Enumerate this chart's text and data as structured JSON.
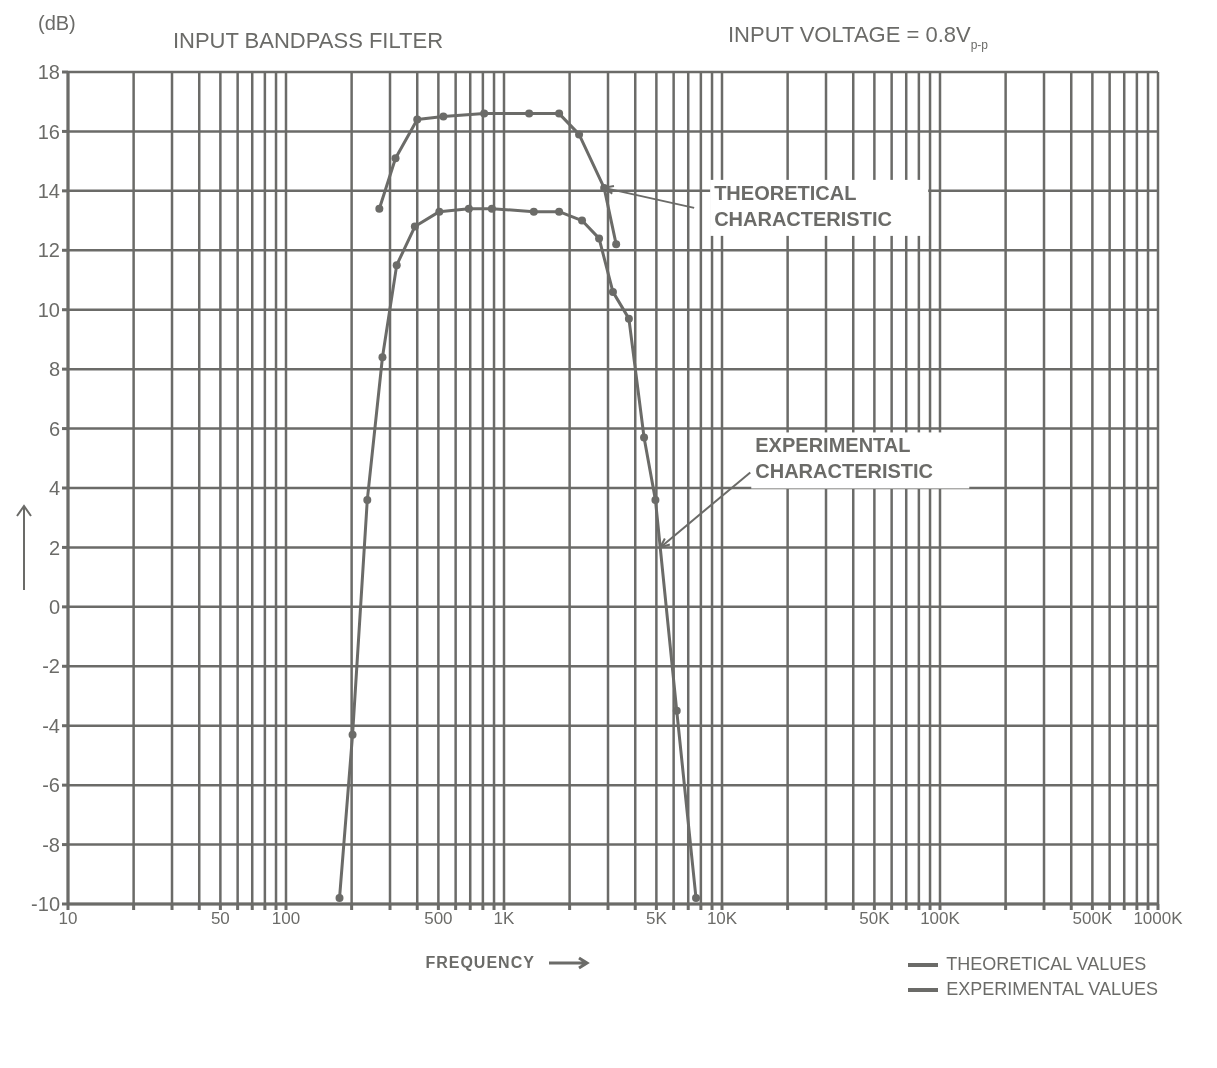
{
  "chart_data": {
    "type": "line",
    "title": "INPUT BANDPASS FILTER",
    "subtitle": "INPUT VOLTAGE = 0.8V$_{p-p}$",
    "ylabel": "(dB)",
    "xlabel": "FREQUENCY",
    "log": "x",
    "grid": true,
    "marker": "circle",
    "line_style": "solid",
    "legend": "bottom right",
    "xlim": [
      10,
      1000000
    ],
    "xticks": [
      {
        "value": 10,
        "label": "10"
      },
      {
        "value": 20,
        "label": null
      },
      {
        "value": 30,
        "label": null
      },
      {
        "value": 40,
        "label": null
      },
      {
        "value": 50,
        "label": "50"
      },
      {
        "value": 60,
        "label": null
      },
      {
        "value": 70,
        "label": null
      },
      {
        "value": 80,
        "label": null
      },
      {
        "value": 90,
        "label": null
      },
      {
        "value": 100,
        "label": "100"
      },
      {
        "value": 200,
        "label": null
      },
      {
        "value": 300,
        "label": null
      },
      {
        "value": 400,
        "label": null
      },
      {
        "value": 500,
        "label": "500"
      },
      {
        "value": 600,
        "label": null
      },
      {
        "value": 700,
        "label": null
      },
      {
        "value": 800,
        "label": null
      },
      {
        "value": 900,
        "label": null
      },
      {
        "value": 1000,
        "label": "1K"
      },
      {
        "value": 2000,
        "label": null
      },
      {
        "value": 3000,
        "label": null
      },
      {
        "value": 4000,
        "label": null
      },
      {
        "value": 5000,
        "label": "5K"
      },
      {
        "value": 6000,
        "label": null
      },
      {
        "value": 7000,
        "label": null
      },
      {
        "value": 8000,
        "label": null
      },
      {
        "value": 9000,
        "label": null
      },
      {
        "value": 10000,
        "label": "10K"
      },
      {
        "value": 20000,
        "label": null
      },
      {
        "value": 30000,
        "label": null
      },
      {
        "value": 40000,
        "label": null
      },
      {
        "value": 50000,
        "label": "50K"
      },
      {
        "value": 60000,
        "label": null
      },
      {
        "value": 70000,
        "label": null
      },
      {
        "value": 80000,
        "label": null
      },
      {
        "value": 90000,
        "label": null
      },
      {
        "value": 100000,
        "label": "100K"
      },
      {
        "value": 200000,
        "label": null
      },
      {
        "value": 300000,
        "label": null
      },
      {
        "value": 400000,
        "label": null
      },
      {
        "value": 500000,
        "label": "500K"
      },
      {
        "value": 600000,
        "label": null
      },
      {
        "value": 700000,
        "label": null
      },
      {
        "value": 800000,
        "label": null
      },
      {
        "value": 900000,
        "label": null
      },
      {
        "value": 1000000,
        "label": "1000K"
      }
    ],
    "ylim": [
      -10,
      18
    ],
    "yticks": [
      -10,
      -8,
      -6,
      -4,
      -2,
      0,
      2,
      4,
      6,
      8,
      10,
      12,
      14,
      16,
      18
    ],
    "series": [
      {
        "name": "THEORETICAL VALUES",
        "color": "#6b6b68",
        "x": [
          268,
          318,
          400,
          527,
          811,
          1304,
          1790,
          2210,
          2880,
          3270
        ],
        "values": [
          13.4,
          15.1,
          16.4,
          16.5,
          16.6,
          16.6,
          16.6,
          15.9,
          14.1,
          12.2
        ]
      },
      {
        "name": "EXPERIMENTAL VALUES",
        "color": "#6b6b68",
        "x": [
          176,
          202,
          236,
          277,
          322,
          390,
          505,
          690,
          880,
          1370,
          1790,
          2280,
          2730,
          3160,
          3740,
          4390,
          4950,
          6200,
          7600
        ],
        "values": [
          -9.8,
          -4.3,
          3.6,
          8.4,
          11.5,
          12.8,
          13.3,
          13.4,
          13.4,
          13.3,
          13.3,
          13.0,
          12.4,
          10.6,
          9.7,
          5.7,
          3.6,
          -3.5,
          -9.8
        ]
      }
    ],
    "annotations": [
      {
        "text": "THEORETICAL CHARACTERISTIC",
        "x": 2880,
        "y": 14.1
      },
      {
        "text": "EXPERIMENTAL CHARACTERISTIC",
        "x": 5210,
        "y": 2
      }
    ]
  }
}
